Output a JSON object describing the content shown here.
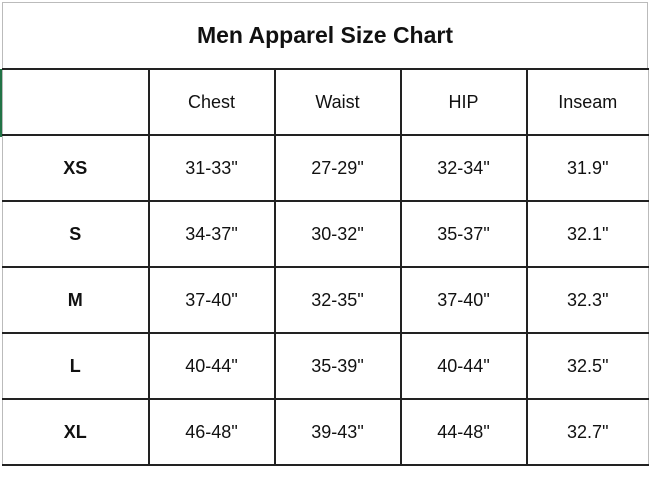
{
  "title": "Men Apparel Size Chart",
  "headers": [
    "",
    "Chest",
    "Waist",
    "HIP",
    "Inseam"
  ],
  "rows": [
    {
      "size": "XS",
      "chest": "31-33\"",
      "waist": "27-29\"",
      "hip": "32-34\"",
      "inseam": "31.9\""
    },
    {
      "size": "S",
      "chest": "34-37\"",
      "waist": "30-32\"",
      "hip": "35-37\"",
      "inseam": "32.1\""
    },
    {
      "size": "M",
      "chest": "37-40\"",
      "waist": "32-35\"",
      "hip": "37-40\"",
      "inseam": "32.3\""
    },
    {
      "size": "L",
      "chest": "40-44\"",
      "waist": "35-39\"",
      "hip": "40-44\"",
      "inseam": "32.5\""
    },
    {
      "size": "XL",
      "chest": "46-48\"",
      "waist": "39-43\"",
      "hip": "44-48\"",
      "inseam": "32.7\""
    }
  ],
  "colors": {
    "selection_accent": "#217346"
  }
}
